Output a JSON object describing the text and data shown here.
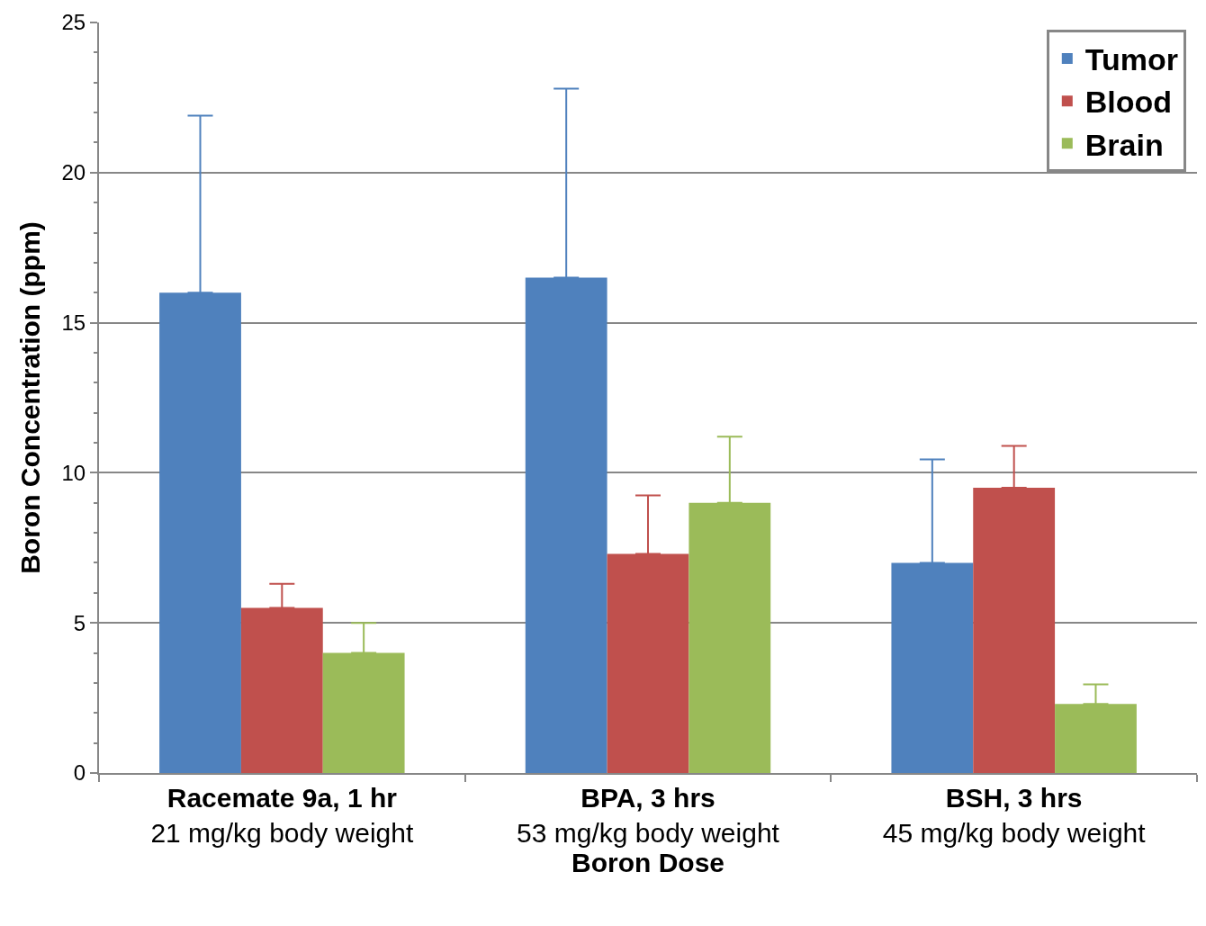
{
  "chart_data": {
    "type": "bar",
    "xlabel": "Boron Dose",
    "ylabel": "Boron Concentration (ppm)",
    "categories": [
      "Racemate 9a, 1 hr\n21 mg/kg body weight",
      "BPA, 3 hrs\n53 mg/kg body weight",
      "BSH, 3 hrs\n45 mg/kg body weight"
    ],
    "series": [
      {
        "name": "Tumor",
        "color": "#4f81bd",
        "values": [
          16.0,
          16.5,
          7.0
        ],
        "errors": [
          [
            16.0,
            21.9
          ],
          [
            16.5,
            22.8
          ],
          [
            7.0,
            10.45
          ]
        ]
      },
      {
        "name": "Blood",
        "color": "#c0504d",
        "values": [
          5.5,
          7.3,
          9.5
        ],
        "errors": [
          [
            5.5,
            6.3
          ],
          [
            7.3,
            9.25
          ],
          [
            9.5,
            10.9
          ]
        ]
      },
      {
        "name": "Brain",
        "color": "#9bbb59",
        "values": [
          4.0,
          9.0,
          2.3
        ],
        "errors": [
          [
            4.0,
            5.0
          ],
          [
            9.0,
            11.2
          ],
          [
            2.3,
            2.95
          ]
        ]
      }
    ],
    "ylim": [
      0,
      25
    ],
    "yticks": [
      0,
      {
        "value": 1,
        "label": null
      },
      {
        "value": 2,
        "label": null
      },
      {
        "value": 3,
        "label": null
      },
      {
        "value": 4,
        "label": null
      },
      5,
      {
        "value": 6,
        "label": null
      },
      {
        "value": 7,
        "label": null
      },
      {
        "value": 8,
        "label": null
      },
      {
        "value": 9,
        "label": null
      },
      10,
      {
        "value": 11,
        "label": null
      },
      {
        "value": 12,
        "label": null
      },
      {
        "value": 13,
        "label": null
      },
      {
        "value": 14,
        "label": null
      },
      15,
      {
        "value": 16,
        "label": null
      },
      {
        "value": 17,
        "label": null
      },
      {
        "value": 18,
        "label": null
      },
      {
        "value": 19,
        "label": null
      },
      20,
      {
        "value": 21,
        "label": null
      },
      {
        "value": 22,
        "label": null
      },
      {
        "value": 23,
        "label": null
      },
      {
        "value": 24,
        "label": null
      },
      25
    ],
    "grid": "y",
    "legend": "top right"
  }
}
